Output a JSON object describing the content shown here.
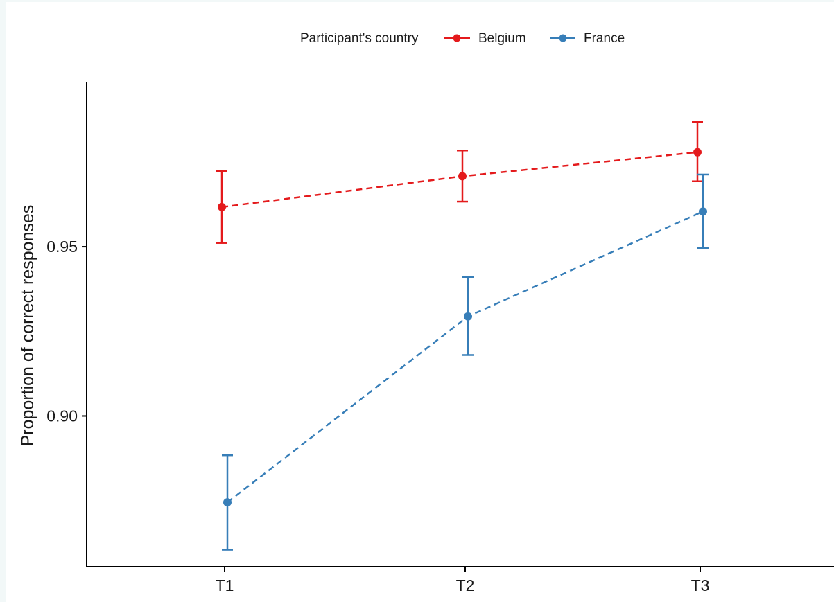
{
  "chart_data": {
    "type": "line",
    "categories": [
      "T1",
      "T2",
      "T3"
    ],
    "ylabel": "Proportion of correct responses",
    "xlabel": "",
    "ylim": [
      0.8555,
      0.9985
    ],
    "yticks": [
      0.9,
      0.95
    ],
    "ytick_labels": [
      "0.90",
      "0.95"
    ],
    "legend_title": "Participant's country",
    "legend_position": "top",
    "grid": false,
    "line_style": "dashed",
    "error_bars": true,
    "series": [
      {
        "name": "Belgium",
        "color": "#e41a1c",
        "values": [
          0.9617,
          0.9708,
          0.9779
        ],
        "lower": [
          0.9511,
          0.9633,
          0.9693
        ],
        "upper": [
          0.9723,
          0.9784,
          0.9868
        ]
      },
      {
        "name": "France",
        "color": "#377eb8",
        "values": [
          0.8745,
          0.9294,
          0.9604
        ],
        "lower": [
          0.8605,
          0.918,
          0.9496
        ],
        "upper": [
          0.8884,
          0.941,
          0.9713
        ]
      }
    ]
  }
}
